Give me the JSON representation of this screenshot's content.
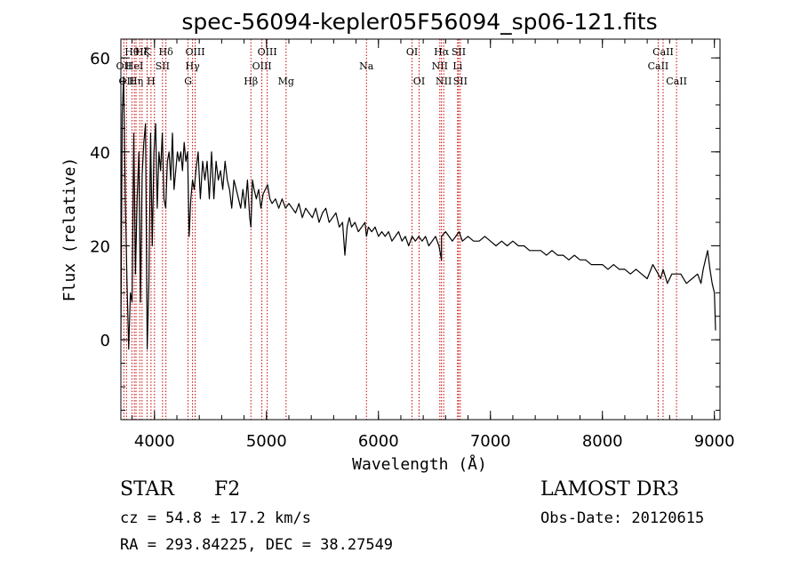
{
  "chart_data": {
    "type": "line",
    "title": "spec-56094-kepler05F56094_sp06-121.fits",
    "xlabel": "Wavelength (Å)",
    "ylabel": "Flux (relative)",
    "xlim": [
      3700,
      9050
    ],
    "ylim": [
      -17,
      64
    ],
    "x_ticks": [
      4000,
      5000,
      6000,
      7000,
      8000,
      9000
    ],
    "y_ticks": [
      0,
      20,
      40,
      60
    ],
    "x_minor_step": 200,
    "y_minor_step": 5,
    "line_color": "#000000",
    "marker_color": "#cc0000",
    "series": [
      {
        "name": "flux",
        "x": [
          3700,
          3712,
          3725,
          3740,
          3755,
          3770,
          3785,
          3800,
          3815,
          3830,
          3845,
          3860,
          3875,
          3890,
          3905,
          3920,
          3935,
          3950,
          3965,
          3980,
          3995,
          4010,
          4025,
          4040,
          4055,
          4070,
          4085,
          4100,
          4115,
          4130,
          4145,
          4160,
          4175,
          4190,
          4205,
          4220,
          4235,
          4250,
          4265,
          4280,
          4295,
          4310,
          4325,
          4340,
          4355,
          4370,
          4390,
          4410,
          4430,
          4450,
          4470,
          4490,
          4510,
          4530,
          4550,
          4570,
          4590,
          4610,
          4630,
          4650,
          4670,
          4690,
          4710,
          4730,
          4750,
          4770,
          4790,
          4810,
          4830,
          4850,
          4861,
          4875,
          4890,
          4910,
          4930,
          4950,
          4970,
          4990,
          5010,
          5030,
          5050,
          5080,
          5110,
          5140,
          5170,
          5200,
          5230,
          5260,
          5290,
          5320,
          5350,
          5380,
          5410,
          5440,
          5470,
          5500,
          5530,
          5560,
          5590,
          5620,
          5650,
          5680,
          5700,
          5720,
          5740,
          5760,
          5790,
          5820,
          5850,
          5880,
          5893,
          5910,
          5940,
          5970,
          6000,
          6030,
          6060,
          6090,
          6120,
          6150,
          6180,
          6210,
          6240,
          6270,
          6300,
          6330,
          6360,
          6390,
          6420,
          6450,
          6480,
          6510,
          6540,
          6563,
          6563,
          6600,
          6630,
          6660,
          6690,
          6720,
          6750,
          6800,
          6850,
          6900,
          6950,
          7000,
          7050,
          7100,
          7150,
          7200,
          7250,
          7300,
          7350,
          7400,
          7450,
          7500,
          7550,
          7600,
          7650,
          7700,
          7750,
          7800,
          7850,
          7900,
          7950,
          8000,
          8050,
          8100,
          8150,
          8200,
          8250,
          8300,
          8350,
          8400,
          8450,
          8498,
          8520,
          8542,
          8580,
          8620,
          8662,
          8700,
          8750,
          8800,
          8850,
          8880,
          8900,
          8920,
          8940,
          8960,
          8980,
          9000,
          9010
        ],
        "y": [
          0,
          48,
          56,
          30,
          12,
          -2,
          10,
          8,
          44,
          14,
          30,
          40,
          8,
          35,
          42,
          46,
          -2,
          12,
          44,
          20,
          40,
          46,
          28,
          40,
          36,
          44,
          30,
          28,
          38,
          40,
          34,
          44,
          32,
          36,
          40,
          38,
          40,
          36,
          42,
          38,
          40,
          22,
          30,
          34,
          32,
          36,
          40,
          30,
          38,
          34,
          38,
          30,
          40,
          30,
          38,
          34,
          36,
          32,
          38,
          34,
          32,
          28,
          34,
          32,
          30,
          28,
          32,
          28,
          34,
          26,
          24,
          34,
          32,
          30,
          32,
          28,
          31,
          32,
          33,
          30,
          29,
          30,
          28,
          30,
          28,
          29,
          28,
          27,
          29,
          26,
          28,
          27,
          26,
          28,
          25,
          27,
          28,
          25,
          26,
          27,
          24,
          25,
          18,
          24,
          26,
          24,
          25,
          23,
          24,
          25,
          22,
          24,
          23,
          24,
          22,
          23,
          22,
          23,
          21,
          22,
          23,
          21,
          22,
          20,
          22,
          21,
          22,
          21,
          22,
          20,
          21,
          22,
          20,
          17,
          22,
          23,
          22,
          21,
          22,
          23,
          21,
          22,
          21,
          21,
          22,
          21,
          20,
          21,
          20,
          21,
          20,
          20,
          19,
          19,
          19,
          18,
          19,
          18,
          18,
          17,
          18,
          17,
          17,
          16,
          16,
          16,
          15,
          16,
          15,
          15,
          14,
          15,
          14,
          13,
          16,
          14,
          13,
          15,
          12,
          14,
          14,
          14,
          12,
          13,
          14,
          12,
          15,
          17,
          19,
          15,
          12,
          10,
          2
        ]
      }
    ],
    "line_markers": [
      {
        "wl": 3727,
        "label": "OII",
        "row": 2
      },
      {
        "wl": 3750,
        "label": "OII",
        "row": 3
      },
      {
        "wl": 3798,
        "label": "Hθ",
        "row": 1
      },
      {
        "wl": 3820,
        "label": "HeI",
        "row": 2
      },
      {
        "wl": 3835,
        "label": "Hη",
        "row": 3
      },
      {
        "wl": 3869,
        "label": "",
        "row": 3
      },
      {
        "wl": 3889,
        "label": "Hζ",
        "row": 1
      },
      {
        "wl": 3934,
        "label": "K",
        "row": 1
      },
      {
        "wl": 3969,
        "label": "H",
        "row": 3
      },
      {
        "wl": 4000,
        "label": "",
        "row": 3
      },
      {
        "wl": 4072,
        "label": "SII",
        "row": 2
      },
      {
        "wl": 4102,
        "label": "Hδ",
        "row": 1
      },
      {
        "wl": 4300,
        "label": "G",
        "row": 3
      },
      {
        "wl": 4340,
        "label": "Hγ",
        "row": 2
      },
      {
        "wl": 4363,
        "label": "OIII",
        "row": 1
      },
      {
        "wl": 4861,
        "label": "Hβ",
        "row": 3
      },
      {
        "wl": 4959,
        "label": "OIII",
        "row": 2
      },
      {
        "wl": 5007,
        "label": "OIII",
        "row": 1
      },
      {
        "wl": 5175,
        "label": "Mg",
        "row": 3
      },
      {
        "wl": 5893,
        "label": "Na",
        "row": 2
      },
      {
        "wl": 6300,
        "label": "OI",
        "row": 1
      },
      {
        "wl": 6363,
        "label": "OI",
        "row": 3
      },
      {
        "wl": 6548,
        "label": "NII",
        "row": 2
      },
      {
        "wl": 6563,
        "label": "Hα",
        "row": 1
      },
      {
        "wl": 6583,
        "label": "NII",
        "row": 3
      },
      {
        "wl": 6707,
        "label": "Li",
        "row": 2
      },
      {
        "wl": 6716,
        "label": "SII",
        "row": 1
      },
      {
        "wl": 6731,
        "label": "SII",
        "row": 3
      },
      {
        "wl": 8498,
        "label": "CaII",
        "row": 2
      },
      {
        "wl": 8542,
        "label": "CaII",
        "row": 1
      },
      {
        "wl": 8662,
        "label": "CaII",
        "row": 3
      }
    ]
  },
  "info": {
    "object_class": "STAR",
    "subclass": "F2",
    "survey": "LAMOST DR3",
    "redshift_line": "cz = 54.8 ± 17.2 km/s",
    "obs_date_line": "Obs-Date: 20120615",
    "coords_line": "RA = 293.84225, DEC =  38.27549"
  }
}
